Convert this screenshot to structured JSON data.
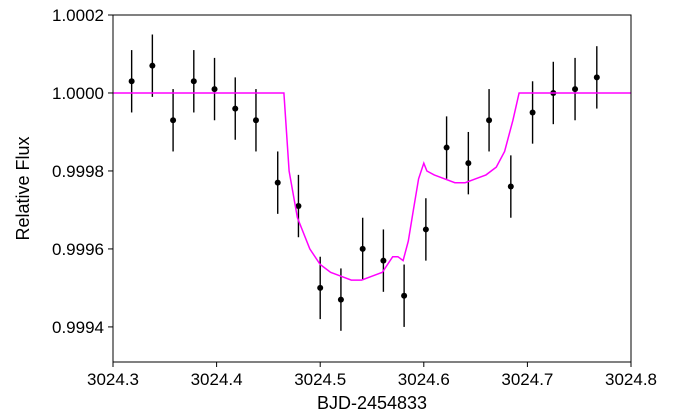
{
  "chart_data": {
    "type": "scatter",
    "title": "",
    "xlabel": "BJD-2454833",
    "ylabel": "Relative Flux",
    "xlim": [
      3024.3,
      3024.8
    ],
    "ylim": [
      0.99931,
      1.0002
    ],
    "x_ticks": [
      {
        "value": 3024.3,
        "label": "3024.3"
      },
      {
        "value": 3024.4,
        "label": "3024.4"
      },
      {
        "value": 3024.5,
        "label": "3024.5"
      },
      {
        "value": 3024.6,
        "label": "3024.6"
      },
      {
        "value": 3024.7,
        "label": "3024.7"
      },
      {
        "value": 3024.8,
        "label": "3024.8"
      }
    ],
    "y_ticks": [
      {
        "value": 0.9994,
        "label": "0.9994"
      },
      {
        "value": 0.9996,
        "label": "0.9996"
      },
      {
        "value": 0.9998,
        "label": "0.9998"
      },
      {
        "value": 1.0,
        "label": "1.0000"
      },
      {
        "value": 1.0002,
        "label": "1.0002"
      }
    ],
    "grid": false,
    "legend": "none",
    "colors": {
      "points": "#000000",
      "model": "#ff00ff"
    },
    "series": [
      {
        "kind": "errorbar-points",
        "points": [
          {
            "x": 3024.318,
            "y": 1.00003,
            "err": 8e-05
          },
          {
            "x": 3024.338,
            "y": 1.00007,
            "err": 8e-05
          },
          {
            "x": 3024.358,
            "y": 0.99993,
            "err": 8e-05
          },
          {
            "x": 3024.378,
            "y": 1.00003,
            "err": 8e-05
          },
          {
            "x": 3024.398,
            "y": 1.00001,
            "err": 8e-05
          },
          {
            "x": 3024.418,
            "y": 0.99996,
            "err": 8e-05
          },
          {
            "x": 3024.438,
            "y": 0.99993,
            "err": 8e-05
          },
          {
            "x": 3024.459,
            "y": 0.99977,
            "err": 8e-05
          },
          {
            "x": 3024.479,
            "y": 0.99971,
            "err": 8e-05
          },
          {
            "x": 3024.5,
            "y": 0.9995,
            "err": 8e-05
          },
          {
            "x": 3024.52,
            "y": 0.99947,
            "err": 8e-05
          },
          {
            "x": 3024.541,
            "y": 0.9996,
            "err": 8e-05
          },
          {
            "x": 3024.561,
            "y": 0.99957,
            "err": 8e-05
          },
          {
            "x": 3024.581,
            "y": 0.99948,
            "err": 8e-05
          },
          {
            "x": 3024.602,
            "y": 0.99965,
            "err": 8e-05
          },
          {
            "x": 3024.622,
            "y": 0.99986,
            "err": 8e-05
          },
          {
            "x": 3024.643,
            "y": 0.99982,
            "err": 8e-05
          },
          {
            "x": 3024.663,
            "y": 0.99993,
            "err": 8e-05
          },
          {
            "x": 3024.684,
            "y": 0.99976,
            "err": 8e-05
          },
          {
            "x": 3024.705,
            "y": 0.99995,
            "err": 8e-05
          },
          {
            "x": 3024.725,
            "y": 1.0,
            "err": 8e-05
          },
          {
            "x": 3024.746,
            "y": 1.00001,
            "err": 8e-05
          },
          {
            "x": 3024.767,
            "y": 1.00004,
            "err": 8e-05
          }
        ]
      },
      {
        "kind": "model-line",
        "points": [
          {
            "x": 3024.3,
            "y": 1.0
          },
          {
            "x": 3024.465,
            "y": 1.0
          },
          {
            "x": 3024.47,
            "y": 0.9998
          },
          {
            "x": 3024.478,
            "y": 0.99968
          },
          {
            "x": 3024.49,
            "y": 0.9996
          },
          {
            "x": 3024.5,
            "y": 0.99956
          },
          {
            "x": 3024.51,
            "y": 0.99954
          },
          {
            "x": 3024.52,
            "y": 0.99953
          },
          {
            "x": 3024.53,
            "y": 0.99952
          },
          {
            "x": 3024.54,
            "y": 0.99952
          },
          {
            "x": 3024.55,
            "y": 0.99953
          },
          {
            "x": 3024.56,
            "y": 0.99954
          },
          {
            "x": 3024.565,
            "y": 0.99956
          },
          {
            "x": 3024.57,
            "y": 0.99958
          },
          {
            "x": 3024.575,
            "y": 0.99958
          },
          {
            "x": 3024.58,
            "y": 0.99957
          },
          {
            "x": 3024.585,
            "y": 0.99962
          },
          {
            "x": 3024.59,
            "y": 0.9997
          },
          {
            "x": 3024.595,
            "y": 0.99978
          },
          {
            "x": 3024.6,
            "y": 0.99982
          },
          {
            "x": 3024.603,
            "y": 0.9998
          },
          {
            "x": 3024.61,
            "y": 0.99979
          },
          {
            "x": 3024.62,
            "y": 0.99978
          },
          {
            "x": 3024.63,
            "y": 0.99977
          },
          {
            "x": 3024.64,
            "y": 0.99977
          },
          {
            "x": 3024.65,
            "y": 0.99978
          },
          {
            "x": 3024.66,
            "y": 0.99979
          },
          {
            "x": 3024.67,
            "y": 0.99981
          },
          {
            "x": 3024.678,
            "y": 0.99985
          },
          {
            "x": 3024.686,
            "y": 0.99993
          },
          {
            "x": 3024.692,
            "y": 1.0
          },
          {
            "x": 3024.8,
            "y": 1.0
          }
        ]
      }
    ]
  }
}
